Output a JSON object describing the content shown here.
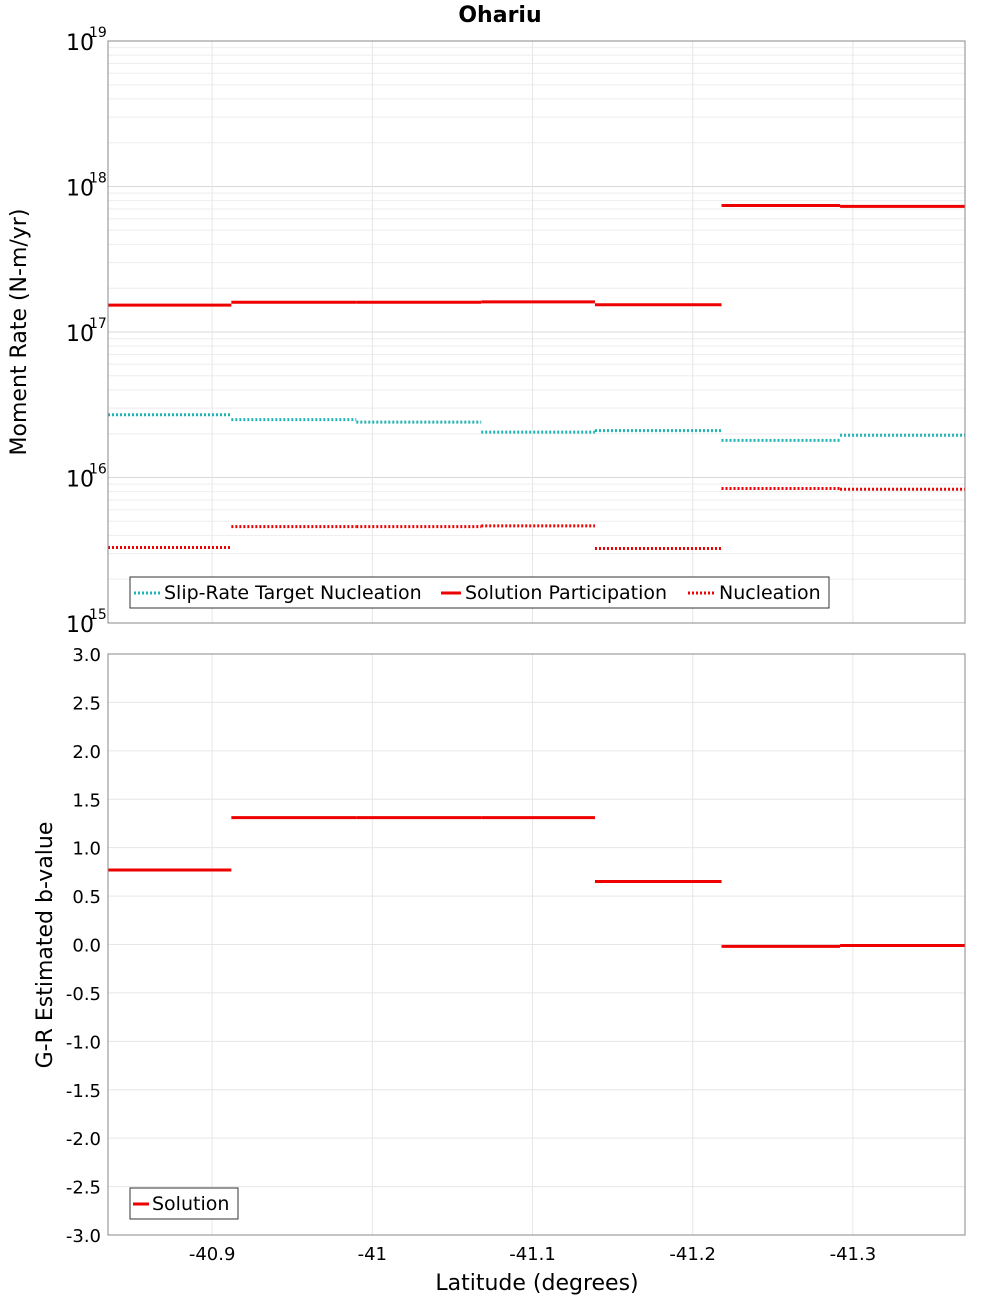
{
  "chart_data": [
    {
      "type": "line",
      "title": "Ohariu",
      "ylabel": "Moment Rate (N-m/yr)",
      "yscale": "log",
      "ylim": [
        1000000000000000.0,
        1e+19
      ],
      "y_ticks": [
        {
          "base": "10",
          "exp": "19"
        },
        {
          "base": "10",
          "exp": "18"
        },
        {
          "base": "10",
          "exp": "17"
        },
        {
          "base": "10",
          "exp": "16"
        },
        {
          "base": "10",
          "exp": "15"
        }
      ],
      "xlim": [
        -40.835,
        -41.37
      ],
      "legend_position": "bottom-left",
      "series": [
        {
          "name": "Slip-Rate Target Nucleation",
          "color": "#1fb5b5",
          "style": "dotted",
          "segments": [
            {
              "x": [
                -40.835,
                -40.912
              ],
              "y": 2.7e+16
            },
            {
              "x": [
                -40.912,
                -40.99
              ],
              "y": 2.5e+16
            },
            {
              "x": [
                -40.99,
                -41.068
              ],
              "y": 2.4e+16
            },
            {
              "x": [
                -41.068,
                -41.139
              ],
              "y": 2.05e+16
            },
            {
              "x": [
                -41.139,
                -41.218
              ],
              "y": 2.1e+16
            },
            {
              "x": [
                -41.218,
                -41.292
              ],
              "y": 1.8e+16
            },
            {
              "x": [
                -41.292,
                -41.37
              ],
              "y": 1.95e+16
            }
          ]
        },
        {
          "name": "Solution Participation",
          "color": "#ee0000",
          "style": "solid",
          "segments": [
            {
              "x": [
                -40.835,
                -40.912
              ],
              "y": 1.53e+17
            },
            {
              "x": [
                -40.912,
                -40.99
              ],
              "y": 1.6e+17
            },
            {
              "x": [
                -40.99,
                -41.068
              ],
              "y": 1.6e+17
            },
            {
              "x": [
                -41.068,
                -41.139
              ],
              "y": 1.61e+17
            },
            {
              "x": [
                -41.139,
                -41.218
              ],
              "y": 1.54e+17
            },
            {
              "x": [
                -41.218,
                -41.292
              ],
              "y": 7.4e+17
            },
            {
              "x": [
                -41.292,
                -41.37
              ],
              "y": 7.3e+17
            }
          ]
        },
        {
          "name": "Nucleation",
          "color": "#ee0000",
          "style": "dotted",
          "segments": [
            {
              "x": [
                -40.835,
                -40.912
              ],
              "y": 3300000000000000.0
            },
            {
              "x": [
                -40.912,
                -40.99
              ],
              "y": 4600000000000000.0
            },
            {
              "x": [
                -40.99,
                -41.068
              ],
              "y": 4600000000000000.0
            },
            {
              "x": [
                -41.068,
                -41.139
              ],
              "y": 4650000000000000.0
            },
            {
              "x": [
                -41.139,
                -41.218
              ],
              "y": 3250000000000000.0
            },
            {
              "x": [
                -41.218,
                -41.292
              ],
              "y": 8400000000000000.0
            },
            {
              "x": [
                -41.292,
                -41.37
              ],
              "y": 8300000000000000.0
            }
          ]
        }
      ]
    },
    {
      "type": "line",
      "title": "",
      "xlabel": "Latitude (degrees)",
      "ylabel": "G-R Estimated b-value",
      "ylim": [
        -3.0,
        3.0
      ],
      "y_ticks": [
        "3.0",
        "2.5",
        "2.0",
        "1.5",
        "1.0",
        "0.5",
        "0.0",
        "-0.5",
        "-1.0",
        "-1.5",
        "-2.0",
        "-2.5",
        "-3.0"
      ],
      "xlim": [
        -40.835,
        -41.37
      ],
      "x_ticks": [
        "-40.9",
        "-41",
        "-41.1",
        "-41.2",
        "-41.3"
      ],
      "legend_position": "bottom-left",
      "series": [
        {
          "name": "Solution",
          "color": "#ee0000",
          "style": "solid",
          "segments": [
            {
              "x": [
                -40.835,
                -40.912
              ],
              "y": 0.77
            },
            {
              "x": [
                -40.912,
                -40.99
              ],
              "y": 1.31
            },
            {
              "x": [
                -40.99,
                -41.068
              ],
              "y": 1.31
            },
            {
              "x": [
                -41.068,
                -41.139
              ],
              "y": 1.31
            },
            {
              "x": [
                -41.139,
                -41.218
              ],
              "y": 0.65
            },
            {
              "x": [
                -41.218,
                -41.292
              ],
              "y": -0.02
            },
            {
              "x": [
                -41.292,
                -41.37
              ],
              "y": -0.01
            }
          ]
        }
      ]
    }
  ]
}
